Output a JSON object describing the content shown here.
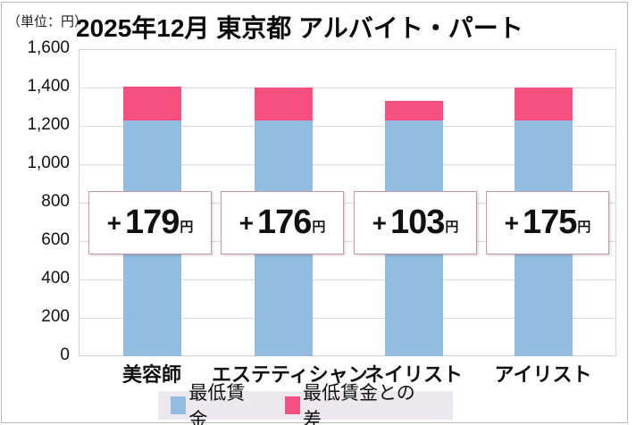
{
  "header": {
    "unit_label": "（単位：円）",
    "title": "2025年12月 東京都 アルバイト・パート"
  },
  "colors": {
    "minimum_wage": "#93bde0",
    "difference": "#f5507f",
    "callout_border": "#c894a6"
  },
  "legend": {
    "items": [
      {
        "label": "最低賃金",
        "color": "#93bde0"
      },
      {
        "label": "最低賃金との差",
        "color": "#f5507f"
      }
    ]
  },
  "y_axis": {
    "ticks": [
      "1,600",
      "1,400",
      "1,200",
      "1,000",
      "800",
      "600",
      "400",
      "200",
      "0"
    ]
  },
  "callouts": [
    {
      "plus": "+",
      "value": "179",
      "unit": "円"
    },
    {
      "plus": "+",
      "value": "176",
      "unit": "円"
    },
    {
      "plus": "+",
      "value": "103",
      "unit": "円"
    },
    {
      "plus": "+",
      "value": "175",
      "unit": "円"
    }
  ],
  "categories": [
    "美容師",
    "エステティシャン",
    "ネイリスト",
    "アイリスト"
  ],
  "chart_data": {
    "type": "bar",
    "stacked": true,
    "title": "2025年12月 東京都 アルバイト・パート",
    "unit": "円",
    "xlabel": "",
    "ylabel": "（単位：円）",
    "categories": [
      "美容師",
      "エステティシャン",
      "ネイリスト",
      "アイリスト"
    ],
    "series": [
      {
        "name": "最低賃金",
        "color": "#93bde0",
        "values": [
          1226,
          1226,
          1226,
          1226
        ]
      },
      {
        "name": "最低賃金との差",
        "color": "#f5507f",
        "values": [
          179,
          176,
          103,
          175
        ]
      }
    ],
    "totals": [
      1405,
      1402,
      1329,
      1401
    ],
    "annotations": [
      "+179円",
      "+176円",
      "+103円",
      "+175円"
    ],
    "ylim": [
      0,
      1600
    ],
    "yticks": [
      0,
      200,
      400,
      600,
      800,
      1000,
      1200,
      1400,
      1600
    ],
    "grid": true,
    "legend_position": "bottom"
  }
}
